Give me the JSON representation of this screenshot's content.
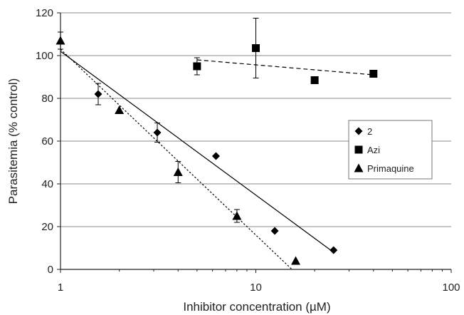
{
  "chart_data": {
    "type": "scatter",
    "title": "",
    "xlabel": "Inhibitor concentration (µM)",
    "ylabel": "Parasitemia (% control)",
    "xscale": "log",
    "xlim": [
      1,
      100
    ],
    "ylim": [
      0,
      120
    ],
    "xticks": [
      "1",
      "10",
      "100"
    ],
    "yticks": [
      "0",
      "20",
      "40",
      "60",
      "80",
      "100",
      "120"
    ],
    "grid": "horizontal",
    "legend_position": "right",
    "series": [
      {
        "name": "2",
        "marker": "diamond",
        "color": "#000000",
        "points": [
          {
            "x": 1.56,
            "y": 82,
            "err": 5
          },
          {
            "x": 3.13,
            "y": 64,
            "err": 4.5
          },
          {
            "x": 6.25,
            "y": 53,
            "err": 0
          },
          {
            "x": 12.5,
            "y": 18,
            "err": 0
          },
          {
            "x": 25,
            "y": 9,
            "err": 0
          }
        ],
        "trend": {
          "style": "solid",
          "from": {
            "x": 1,
            "y": 102
          },
          "to": {
            "x": 25,
            "y": 8
          }
        }
      },
      {
        "name": "Azi",
        "marker": "square",
        "color": "#000000",
        "points": [
          {
            "x": 5,
            "y": 95,
            "err": 4
          },
          {
            "x": 10,
            "y": 103.5,
            "err": 14
          },
          {
            "x": 20,
            "y": 88.5,
            "err": 0
          },
          {
            "x": 40,
            "y": 91.5,
            "err": 0
          }
        ],
        "trend": {
          "style": "dashed",
          "from": {
            "x": 5,
            "y": 98
          },
          "to": {
            "x": 40,
            "y": 91
          }
        }
      },
      {
        "name": "Primaquine",
        "marker": "triangle",
        "color": "#000000",
        "points": [
          {
            "x": 1,
            "y": 107,
            "err": 4
          },
          {
            "x": 2,
            "y": 74.5,
            "err": 0
          },
          {
            "x": 4,
            "y": 45.5,
            "err": 5
          },
          {
            "x": 8,
            "y": 25,
            "err": 3
          },
          {
            "x": 16,
            "y": 4,
            "err": 0
          }
        ],
        "trend": {
          "style": "dotted",
          "from": {
            "x": 1,
            "y": 103
          },
          "to": {
            "x": 15.3,
            "y": 0
          }
        }
      }
    ]
  }
}
